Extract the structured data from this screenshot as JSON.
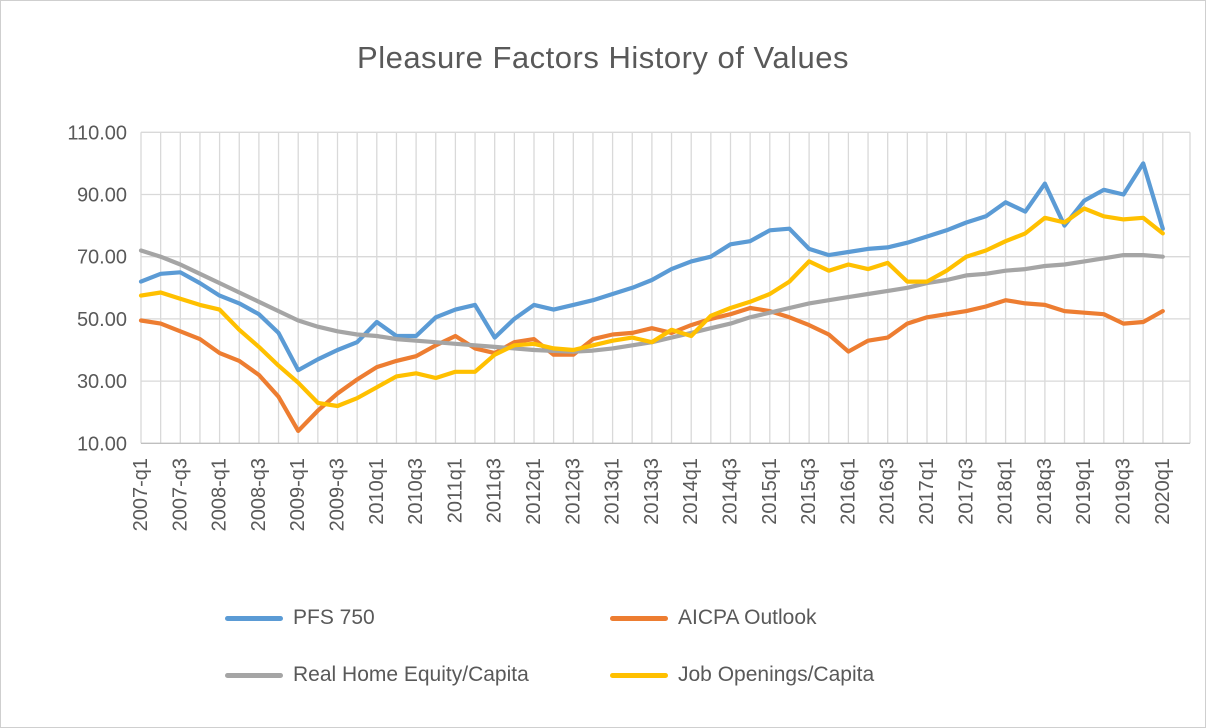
{
  "chart": {
    "title": "Pleasure Factors History of Values"
  },
  "chart_data": {
    "type": "line",
    "title": "Pleasure Factors History of Values",
    "xlabel": "",
    "ylabel": "",
    "ylim": [
      10,
      110
    ],
    "y_tick_labels": [
      "110.00",
      "90.00",
      "70.00",
      "50.00",
      "30.00",
      "10.00"
    ],
    "y_tick_values": [
      110,
      90,
      70,
      50,
      30,
      10
    ],
    "x_tick_labels": [
      "2007-q1",
      "2007-q3",
      "2008-q1",
      "2008-q3",
      "2009-q1",
      "2009-q3",
      "2010q1",
      "2010q3",
      "2011q1",
      "2011q3",
      "2012q1",
      "2012q3",
      "2013q1",
      "2013q3",
      "2014q1",
      "2014q3",
      "2015q1",
      "2015q3",
      "2016q1",
      "2016q3",
      "2017q1",
      "2017q3",
      "2018q1",
      "2018q3",
      "2019q1",
      "2019q3",
      "2020q1"
    ],
    "points_per_tick": 2,
    "grid": "both",
    "legend_position": "bottom",
    "colors": {
      "grid": "#D9D9D9",
      "axis": "#BFBFBF",
      "text": "#595959"
    },
    "series": [
      {
        "name": "PFS 750",
        "color": "#5B9BD5",
        "values": [
          62,
          64.5,
          65,
          61.5,
          57.5,
          55,
          51.5,
          45.5,
          33.5,
          37,
          40,
          42.5,
          49,
          44.5,
          44.5,
          50.5,
          53,
          54.5,
          44,
          50,
          54.5,
          53,
          54.5,
          56,
          58,
          60,
          62.5,
          66,
          68.5,
          70,
          74,
          75,
          78.5,
          79,
          72.5,
          70.5,
          71.5,
          72.5,
          73,
          74.5,
          76.5,
          78.5,
          81,
          83,
          87.5,
          84.5,
          93.5,
          80,
          88,
          91.5,
          90,
          100,
          79
        ]
      },
      {
        "name": "AICPA Outlook",
        "color": "#ED7D31",
        "values": [
          49.5,
          48.5,
          46,
          43.5,
          39,
          36.5,
          32,
          25,
          14,
          20.5,
          26,
          30.5,
          34.5,
          36.5,
          38,
          41.5,
          44.5,
          40.5,
          39,
          42.5,
          43.5,
          38.5,
          38.5,
          43.5,
          45,
          45.5,
          47,
          45.5,
          48,
          50,
          51.5,
          53.5,
          52.5,
          50.5,
          48,
          45,
          39.5,
          43,
          44,
          48.5,
          50.5,
          51.5,
          52.5,
          54,
          56,
          55,
          54.5,
          52.5,
          52,
          51.5,
          48.5,
          49,
          52.5
        ]
      },
      {
        "name": "Real Home Equity/Capita",
        "color": "#A5A5A5",
        "values": [
          72,
          70,
          67.5,
          64.5,
          61.5,
          58.5,
          55.5,
          52.5,
          49.5,
          47.5,
          46,
          45,
          44.5,
          43.5,
          43,
          42.5,
          42,
          41.5,
          41,
          40.5,
          40,
          39.7,
          39.5,
          39.8,
          40.5,
          41.5,
          42.5,
          44,
          45.5,
          47,
          48.5,
          50.5,
          52,
          53.5,
          55,
          56,
          57,
          58,
          59,
          60,
          61.5,
          62.5,
          64,
          64.5,
          65.5,
          66,
          67,
          67.5,
          68.5,
          69.5,
          70.5,
          70.5,
          70
        ]
      },
      {
        "name": "Job Openings/Capita",
        "color": "#FFC000",
        "values": [
          57.5,
          58.5,
          56.5,
          54.5,
          53,
          46.5,
          41,
          35,
          29.5,
          23,
          22,
          24.5,
          28,
          31.5,
          32.5,
          31,
          33,
          33,
          38.5,
          41.5,
          42,
          40.5,
          40,
          41.5,
          43,
          44,
          42.5,
          46.5,
          44.5,
          51,
          53.5,
          55.5,
          58,
          62,
          68.5,
          65.5,
          67.5,
          66,
          68,
          62,
          62,
          65.5,
          70,
          72,
          75,
          77.5,
          82.5,
          81,
          85.5,
          83,
          82,
          82.5,
          77.5
        ]
      }
    ]
  }
}
